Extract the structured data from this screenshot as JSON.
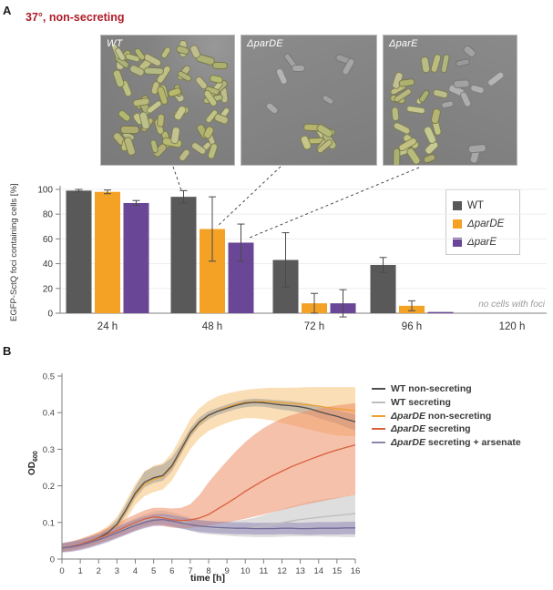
{
  "panel_a": {
    "label": "A",
    "title": "37°, non-secreting",
    "micrographs": [
      {
        "label": "WT"
      },
      {
        "label": "ΔparDE"
      },
      {
        "label": "ΔparE"
      }
    ],
    "legend": {
      "items": [
        {
          "label": "WT",
          "italic": false,
          "color": "#595959"
        },
        {
          "label": "ΔparDE",
          "italic": true,
          "color": "#F3A226"
        },
        {
          "label": "ΔparE",
          "italic": true,
          "color": "#6A4796"
        }
      ]
    }
  },
  "panel_b": {
    "label": "B",
    "legend": {
      "items": [
        {
          "gene": "WT",
          "italic": false,
          "rest": " non-secreting",
          "color": "#4f4f4f"
        },
        {
          "gene": "WT",
          "italic": false,
          "rest": " secreting",
          "color": "#bdbdbd"
        },
        {
          "gene": "ΔparDE",
          "italic": true,
          "rest": " non-secreting",
          "color": "#efa02f"
        },
        {
          "gene": "ΔparDE",
          "italic": true,
          "rest": " secreting",
          "color": "#d95f3b"
        },
        {
          "gene": "ΔparDE",
          "italic": true,
          "rest": " secreting + arsenate",
          "color": "#8c84ad"
        }
      ]
    }
  },
  "chart_data": [
    {
      "type": "bar",
      "ylabel": "EGFP-SctQ foci containing cells [%]",
      "categories": [
        "24 h",
        "48 h",
        "72 h",
        "96 h",
        "120 h"
      ],
      "ylim": [
        0,
        100
      ],
      "yticks": [
        0,
        20,
        40,
        60,
        80,
        100
      ],
      "grid": true,
      "legend_position": "top-right",
      "annotation": "no cells with foci",
      "series": [
        {
          "name": "WT",
          "color": "#595959",
          "values": [
            99,
            94,
            43,
            39,
            0
          ],
          "errors": [
            1,
            5,
            22,
            6,
            0
          ]
        },
        {
          "name": "ΔparDE",
          "color": "#F3A226",
          "values": [
            98,
            68,
            8,
            6,
            0
          ],
          "errors": [
            1.5,
            26,
            8,
            4,
            0
          ]
        },
        {
          "name": "ΔparE",
          "color": "#6A4796",
          "values": [
            89,
            57,
            8,
            1,
            0
          ],
          "errors": [
            2,
            15,
            11,
            0,
            0
          ]
        }
      ]
    },
    {
      "type": "line",
      "xlabel": "time [h]",
      "ylabel": "OD",
      "ylabel_sub": "600",
      "xlim": [
        0,
        16
      ],
      "ylim": [
        0,
        0.5
      ],
      "xticks": [
        0,
        1,
        2,
        3,
        4,
        5,
        6,
        7,
        8,
        9,
        10,
        11,
        12,
        13,
        14,
        15,
        16
      ],
      "ytick_labels": [
        "0",
        "0.1",
        "0.2",
        "0.3",
        "0.4",
        "0.5"
      ],
      "yticks": [
        0,
        0.1,
        0.2,
        0.3,
        0.4,
        0.5
      ],
      "x": [
        0,
        0.5,
        1,
        1.5,
        2,
        2.5,
        3,
        3.5,
        4,
        4.5,
        5,
        5.5,
        6,
        6.5,
        7,
        7.5,
        8,
        8.5,
        9,
        9.5,
        10,
        10.5,
        11,
        11.5,
        12,
        12.5,
        13,
        13.5,
        14,
        14.5,
        15,
        15.5,
        16
      ],
      "series": [
        {
          "name": "ΔparDE non-secreting",
          "color": "#efa02f",
          "band_color": "#f6be6e",
          "band_opacity": 0.5,
          "y": [
            0.03,
            0.034,
            0.04,
            0.048,
            0.058,
            0.072,
            0.093,
            0.132,
            0.176,
            0.205,
            0.218,
            0.225,
            0.252,
            0.296,
            0.342,
            0.372,
            0.392,
            0.405,
            0.415,
            0.423,
            0.428,
            0.43,
            0.43,
            0.429,
            0.427,
            0.425,
            0.423,
            0.421,
            0.418,
            0.414,
            0.411,
            0.408,
            0.405
          ],
          "upper": [
            0.042,
            0.047,
            0.054,
            0.063,
            0.074,
            0.09,
            0.115,
            0.158,
            0.205,
            0.24,
            0.255,
            0.262,
            0.29,
            0.335,
            0.382,
            0.412,
            0.432,
            0.445,
            0.452,
            0.458,
            0.462,
            0.465,
            0.467,
            0.468,
            0.468,
            0.468,
            0.469,
            0.47,
            0.47,
            0.47,
            0.47,
            0.47,
            0.47
          ],
          "lower": [
            0.02,
            0.024,
            0.029,
            0.036,
            0.045,
            0.057,
            0.075,
            0.108,
            0.148,
            0.172,
            0.183,
            0.19,
            0.215,
            0.258,
            0.3,
            0.33,
            0.35,
            0.362,
            0.372,
            0.38,
            0.385,
            0.385,
            0.382,
            0.378,
            0.372,
            0.366,
            0.36,
            0.354,
            0.348,
            0.342,
            0.338,
            0.336,
            0.335
          ]
        },
        {
          "name": "WT non-secreting",
          "color": "#4f4f4f",
          "band_color": "#909090",
          "band_opacity": 0.45,
          "y": [
            0.03,
            0.034,
            0.04,
            0.048,
            0.058,
            0.072,
            0.095,
            0.135,
            0.18,
            0.21,
            0.222,
            0.228,
            0.255,
            0.3,
            0.345,
            0.375,
            0.393,
            0.404,
            0.412,
            0.42,
            0.426,
            0.428,
            0.427,
            0.424,
            0.421,
            0.419,
            0.416,
            0.411,
            0.403,
            0.396,
            0.39,
            0.382,
            0.375
          ],
          "upper": [
            0.04,
            0.044,
            0.05,
            0.058,
            0.068,
            0.084,
            0.108,
            0.15,
            0.196,
            0.238,
            0.252,
            0.258,
            0.278,
            0.315,
            0.358,
            0.387,
            0.404,
            0.414,
            0.422,
            0.43,
            0.436,
            0.438,
            0.437,
            0.435,
            0.433,
            0.431,
            0.428,
            0.424,
            0.418,
            0.412,
            0.407,
            0.4,
            0.395
          ],
          "lower": [
            0.022,
            0.026,
            0.032,
            0.04,
            0.05,
            0.062,
            0.084,
            0.122,
            0.166,
            0.196,
            0.208,
            0.214,
            0.24,
            0.286,
            0.332,
            0.363,
            0.382,
            0.394,
            0.402,
            0.41,
            0.415,
            0.417,
            0.416,
            0.412,
            0.408,
            0.405,
            0.4,
            0.394,
            0.385,
            0.377,
            0.37,
            0.36,
            0.352
          ]
        },
        {
          "name": "WT secreting",
          "color": "#bdbdbd",
          "band_color": "#c8c8c8",
          "band_opacity": 0.6,
          "y": [
            0.03,
            0.034,
            0.04,
            0.047,
            0.055,
            0.064,
            0.074,
            0.085,
            0.096,
            0.106,
            0.113,
            0.115,
            0.11,
            0.103,
            0.095,
            0.089,
            0.086,
            0.084,
            0.083,
            0.083,
            0.084,
            0.086,
            0.09,
            0.094,
            0.099,
            0.104,
            0.108,
            0.111,
            0.114,
            0.117,
            0.119,
            0.122,
            0.124
          ],
          "upper": [
            0.042,
            0.046,
            0.052,
            0.06,
            0.068,
            0.078,
            0.089,
            0.1,
            0.112,
            0.122,
            0.13,
            0.133,
            0.128,
            0.121,
            0.113,
            0.107,
            0.104,
            0.103,
            0.103,
            0.105,
            0.108,
            0.113,
            0.12,
            0.128,
            0.136,
            0.143,
            0.15,
            0.156,
            0.161,
            0.165,
            0.168,
            0.172,
            0.175
          ],
          "lower": [
            0.02,
            0.024,
            0.029,
            0.035,
            0.042,
            0.05,
            0.059,
            0.07,
            0.08,
            0.09,
            0.096,
            0.097,
            0.092,
            0.085,
            0.077,
            0.071,
            0.068,
            0.066,
            0.064,
            0.062,
            0.061,
            0.06,
            0.06,
            0.06,
            0.061,
            0.062,
            0.062,
            0.062,
            0.062,
            0.061,
            0.061,
            0.06,
            0.06
          ]
        },
        {
          "name": "ΔparDE secreting",
          "color": "#d95f3b",
          "band_color": "#ee8e66",
          "band_opacity": 0.55,
          "y": [
            0.03,
            0.034,
            0.04,
            0.048,
            0.057,
            0.067,
            0.077,
            0.088,
            0.099,
            0.109,
            0.115,
            0.113,
            0.108,
            0.105,
            0.107,
            0.112,
            0.122,
            0.137,
            0.152,
            0.168,
            0.185,
            0.2,
            0.215,
            0.228,
            0.24,
            0.252,
            0.262,
            0.272,
            0.281,
            0.29,
            0.298,
            0.305,
            0.312
          ],
          "upper": [
            0.043,
            0.048,
            0.055,
            0.064,
            0.074,
            0.085,
            0.097,
            0.11,
            0.122,
            0.133,
            0.14,
            0.14,
            0.138,
            0.14,
            0.15,
            0.175,
            0.21,
            0.24,
            0.268,
            0.295,
            0.32,
            0.34,
            0.358,
            0.372,
            0.384,
            0.393,
            0.4,
            0.406,
            0.411,
            0.416,
            0.42,
            0.423,
            0.426
          ],
          "lower": [
            0.019,
            0.022,
            0.027,
            0.033,
            0.041,
            0.05,
            0.059,
            0.068,
            0.078,
            0.087,
            0.092,
            0.09,
            0.086,
            0.084,
            0.085,
            0.088,
            0.092,
            0.096,
            0.1,
            0.105,
            0.11,
            0.116,
            0.122,
            0.128,
            0.134,
            0.14,
            0.146,
            0.151,
            0.156,
            0.161,
            0.166,
            0.171,
            0.175
          ]
        },
        {
          "name": "ΔparDE secreting + arsenate",
          "color": "#716a96",
          "band_color": "#8e80b4",
          "band_opacity": 0.5,
          "y": [
            0.03,
            0.033,
            0.038,
            0.045,
            0.053,
            0.062,
            0.072,
            0.082,
            0.092,
            0.1,
            0.106,
            0.108,
            0.104,
            0.099,
            0.094,
            0.09,
            0.088,
            0.086,
            0.085,
            0.084,
            0.084,
            0.083,
            0.083,
            0.083,
            0.084,
            0.084,
            0.083,
            0.083,
            0.084,
            0.084,
            0.084,
            0.085,
            0.085
          ],
          "upper": [
            0.044,
            0.048,
            0.053,
            0.06,
            0.068,
            0.078,
            0.088,
            0.098,
            0.108,
            0.116,
            0.122,
            0.124,
            0.12,
            0.115,
            0.11,
            0.106,
            0.104,
            0.102,
            0.101,
            0.1,
            0.1,
            0.099,
            0.099,
            0.099,
            0.1,
            0.1,
            0.099,
            0.1,
            0.101,
            0.101,
            0.101,
            0.102,
            0.102
          ],
          "lower": [
            0.018,
            0.02,
            0.024,
            0.03,
            0.038,
            0.046,
            0.056,
            0.066,
            0.076,
            0.084,
            0.09,
            0.092,
            0.088,
            0.083,
            0.078,
            0.074,
            0.072,
            0.07,
            0.069,
            0.068,
            0.068,
            0.067,
            0.067,
            0.067,
            0.068,
            0.068,
            0.067,
            0.066,
            0.067,
            0.067,
            0.067,
            0.068,
            0.068
          ]
        }
      ]
    }
  ]
}
